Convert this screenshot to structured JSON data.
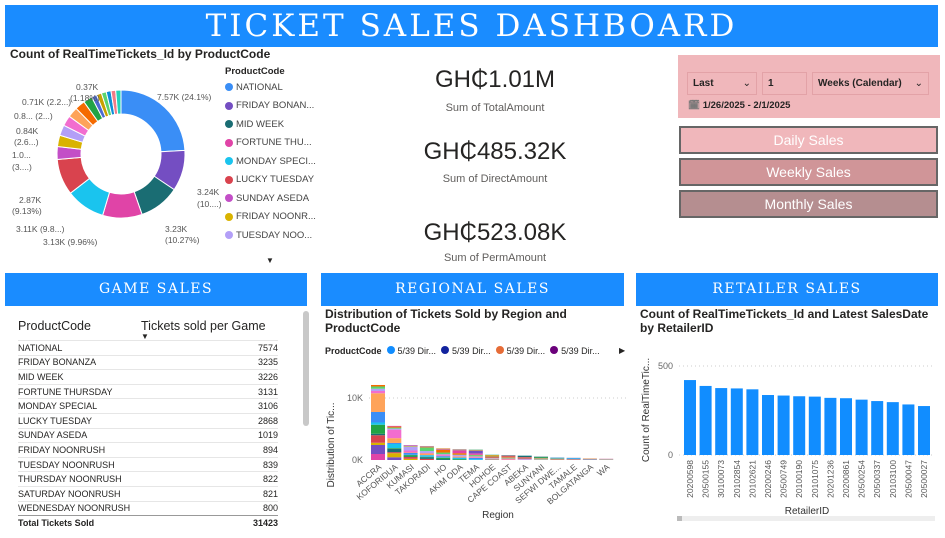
{
  "title": "TICKET SALES DASHBOARD",
  "donut": {
    "title": "Count of RealTimeTickets_Id by ProductCode",
    "legend_title": "ProductCode",
    "legend": [
      "NATIONAL",
      "FRIDAY BONAN...",
      "MID WEEK",
      "FORTUNE THU...",
      "MONDAY SPECI...",
      "LUCKY TUESDAY",
      "SUNDAY ASEDA",
      "FRIDAY NOONR...",
      "TUESDAY NOO..."
    ],
    "slices": [
      {
        "product": "NATIONAL",
        "value": 7574,
        "color": "#3a8ef6"
      },
      {
        "product": "FRIDAY BONANZA",
        "value": 3235,
        "color": "#744ec2"
      },
      {
        "product": "MID WEEK",
        "value": 3226,
        "color": "#1a6d73"
      },
      {
        "product": "FORTUNE THURSDAY",
        "value": 3131,
        "color": "#e044a7"
      },
      {
        "product": "MONDAY SPECIAL",
        "value": 3106,
        "color": "#1ac4ee"
      },
      {
        "product": "LUCKY TUESDAY",
        "value": 2868,
        "color": "#d9434e"
      },
      {
        "product": "SUNDAY ASEDA",
        "value": 1019,
        "color": "#c34fc7"
      },
      {
        "product": "FRIDAY NOONRUSH",
        "value": 894,
        "color": "#d9b300"
      },
      {
        "product": "TUESDAY NOONRUSH",
        "value": 839,
        "color": "#b39ff7"
      },
      {
        "product": "THURSDAY NOONRUSH",
        "value": 822,
        "color": "#f26dcf"
      },
      {
        "product": "SATURDAY NOONRUSH",
        "value": 821,
        "color": "#fea35a"
      },
      {
        "product": "WEDNESDAY NOONRUSH",
        "value": 800,
        "color": "#f56a00"
      },
      {
        "product": "",
        "value": 710,
        "color": "#22a344"
      },
      {
        "product": "",
        "value": 420,
        "color": "#4c6bd1"
      },
      {
        "product": "",
        "value": 400,
        "color": "#c8a000"
      },
      {
        "product": "",
        "value": 390,
        "color": "#5ad46f"
      },
      {
        "product": "",
        "value": 380,
        "color": "#0b8fd8"
      },
      {
        "product": "",
        "value": 370,
        "color": "#f07b87"
      },
      {
        "product": "",
        "value": 418,
        "color": "#22d3b8"
      }
    ],
    "labels": [
      "7.57K (24.1%)",
      "3.24K",
      "(10....)",
      "3.23K",
      "(10.27%)",
      "3.13K (9.96%)",
      "3.11K (9.8...)",
      "2.87K",
      "(9.13%)",
      "1.0...",
      "(3....)",
      "0.84K",
      "(2.6...)",
      "0.8... (2...)",
      "0.71K (2.2...)",
      "0.37K",
      "(1.18%)"
    ]
  },
  "kpis": [
    {
      "value": "GH₵1.01M",
      "label": "Sum of TotalAmount"
    },
    {
      "value": "GH₵485.32K",
      "label": "Sum of DirectAmount"
    },
    {
      "value": "GH₵523.08K",
      "label": "Sum of PermAmount"
    }
  ],
  "filter": {
    "mode": "Last",
    "count": "1",
    "unit": "Weeks (Calendar)",
    "range": "1/26/2025 - 2/1/2025"
  },
  "buttons": {
    "daily": "Daily Sales",
    "weekly": "Weekly Sales",
    "monthly": "Monthly Sales"
  },
  "sections": {
    "game": "GAME SALES",
    "regional": "REGIONAL SALES",
    "retailer": "RETAILER SALES"
  },
  "table": {
    "headers": [
      "ProductCode",
      "Tickets sold per Game"
    ],
    "rows": [
      [
        "NATIONAL",
        "7574"
      ],
      [
        "FRIDAY BONANZA",
        "3235"
      ],
      [
        "MID WEEK",
        "3226"
      ],
      [
        "FORTUNE THURSDAY",
        "3131"
      ],
      [
        "MONDAY SPECIAL",
        "3106"
      ],
      [
        "LUCKY TUESDAY",
        "2868"
      ],
      [
        "SUNDAY ASEDA",
        "1019"
      ],
      [
        "FRIDAY NOONRUSH",
        "894"
      ],
      [
        "TUESDAY NOONRUSH",
        "839"
      ],
      [
        "THURSDAY NOONRUSH",
        "822"
      ],
      [
        "SATURDAY NOONRUSH",
        "821"
      ],
      [
        "WEDNESDAY NOONRUSH",
        "800"
      ]
    ],
    "total": [
      "Total Tickets Sold",
      "31423"
    ]
  },
  "chart_data": [
    {
      "type": "bar",
      "stacked": true,
      "title": "Distribution of Tickets Sold by Region and ProductCode",
      "xlabel": "Region",
      "ylabel": "Distribution of Tic...",
      "legend_title": "ProductCode",
      "legend": [
        "5/39 Dir...",
        "5/39 Dir...",
        "5/39 Dir...",
        "5/39 Dir..."
      ],
      "legend_colors": [
        "#118dff",
        "#12239e",
        "#e66c37",
        "#6b007b"
      ],
      "categories": [
        "ACCRA",
        "KOFORIDUA",
        "KUMASI",
        "TAKORADI",
        "HO",
        "AKIM ODA",
        "TEMA",
        "HOHOE",
        "CAPE COAST",
        "ABEKA",
        "SUNYANI",
        "SEFWI DWE...",
        "TAMALE",
        "BOLGATANGA",
        "WA"
      ],
      "totals": [
        12100,
        5500,
        2400,
        2260,
        1880,
        1720,
        1670,
        860,
        800,
        750,
        590,
        430,
        380,
        270,
        215
      ],
      "yticks": [
        "0K",
        "10K"
      ],
      "ylim": [
        0,
        13000
      ],
      "grid": true,
      "legend_position": "top"
    },
    {
      "type": "bar",
      "title": "Count of RealTimeTickets_Id and Latest SalesDate by RetailerID",
      "xlabel": "RetailerID",
      "ylabel": "Count of RealTimeTic...",
      "categories": [
        "20200598",
        "20500155",
        "30100073",
        "20102854",
        "20102621",
        "20200246",
        "20500749",
        "20100190",
        "20101075",
        "20201236",
        "20200861",
        "20500254",
        "20500337",
        "20103100",
        "20500047",
        "20500027"
      ],
      "values": [
        421,
        388,
        376,
        374,
        369,
        337,
        334,
        330,
        328,
        321,
        319,
        311,
        303,
        297,
        284,
        275
      ],
      "yticks": [
        "0",
        "500"
      ],
      "ylim": [
        0,
        500
      ],
      "grid": true,
      "color": "#118dff"
    }
  ]
}
